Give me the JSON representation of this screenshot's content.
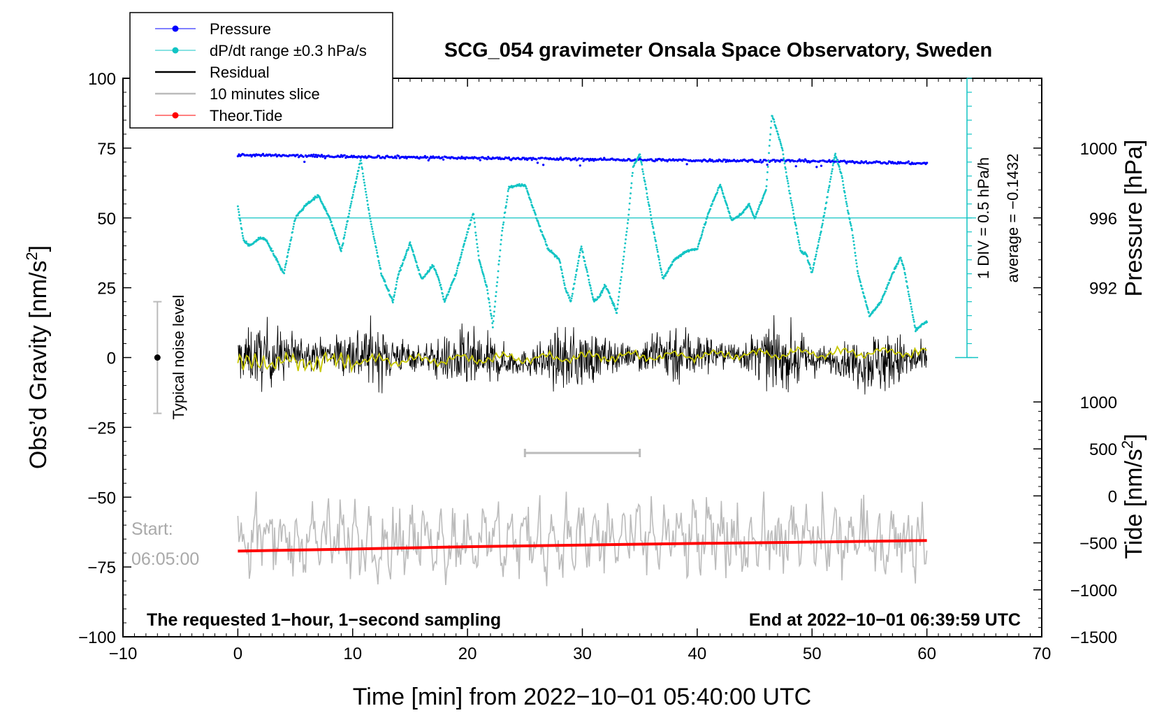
{
  "chart_data": {
    "type": "line",
    "title": "SCG_054 gravimeter Onsala Space Observatory, Sweden",
    "xlabel": "Time [min] from 2022−10−01 05:40:00 UTC",
    "ylabel_left": "Obs’d Gravity [nm/s²]",
    "ylabel_left_main": "Obs’d Gravity [nm/s",
    "ylabel_left_sup": "2",
    "ylabel_left_end": "]",
    "ylabel_pressure": "Pressure [hPa]",
    "ylabel_tide": "Tide [nm/s²]",
    "ylabel_tide_main": "Tide [nm/s",
    "ylabel_tide_sup": "2",
    "ylabel_tide_end": "]",
    "xlim": [
      -10,
      70
    ],
    "ylim": [
      -100,
      100
    ],
    "x_ticks": [
      -10,
      0,
      10,
      20,
      30,
      40,
      50,
      60,
      70
    ],
    "x_tick_labels": [
      "−10",
      "0",
      "10",
      "20",
      "30",
      "40",
      "50",
      "60",
      "70"
    ],
    "y_ticks": [
      100,
      75,
      50,
      25,
      0,
      -25,
      -50,
      -75,
      -100
    ],
    "y_tick_labels": [
      "100",
      "75",
      "50",
      "25",
      "0",
      "−25",
      "−50",
      "−75",
      "−100"
    ],
    "pressure_axis": {
      "ticks": [
        1000,
        996,
        992
      ],
      "tick_labels": [
        "1000",
        "996",
        "992"
      ],
      "gravity_equivalent": [
        75,
        50,
        25
      ]
    },
    "tide_axis": {
      "range": [
        -1500,
        1000
      ],
      "ticks": [
        1000,
        500,
        0,
        -500,
        -1000,
        -1500
      ],
      "tick_labels": [
        "1000",
        "500",
        "0",
        "−500",
        "−1000",
        "−1500"
      ]
    },
    "legend": {
      "position": "top-left",
      "entries": [
        {
          "label": "Pressure",
          "color": "#0000ff",
          "style": "line-dot"
        },
        {
          "label": "dP/dt range ±0.3 hPa/s",
          "color": "#11c4c4",
          "style": "line-dot"
        },
        {
          "label": "Residual",
          "color": "#000000",
          "style": "line"
        },
        {
          "label": "10 minutes slice",
          "color": "#bbbbbb",
          "style": "line"
        },
        {
          "label": "Theor.Tide",
          "color": "#ff0000",
          "style": "line-dot"
        }
      ]
    },
    "series": [
      {
        "name": "Pressure",
        "color": "#0000ff",
        "x": [
          0,
          10,
          20,
          30,
          40,
          50,
          60
        ],
        "values": [
          72.5,
          72.0,
          71.5,
          71.0,
          70.6,
          70.4,
          69.5
        ]
      },
      {
        "name": "dP/dt range",
        "color": "#11c4c4",
        "x": [
          0,
          0.5,
          1,
          2,
          2.5,
          3,
          4,
          5,
          6,
          7,
          8,
          9,
          10,
          10.7,
          11.5,
          12.5,
          13.5,
          14,
          15,
          16,
          17,
          17.5,
          18,
          19,
          20,
          20.5,
          21,
          21.7,
          22.2,
          23,
          23.6,
          25,
          26,
          27,
          28,
          28.5,
          29,
          29.9,
          31,
          31.5,
          32,
          33,
          34,
          34.4,
          35,
          36,
          37,
          38,
          39,
          40,
          41,
          42,
          43,
          44,
          44.5,
          45,
          46,
          46.5,
          47.4,
          48,
          49,
          49.5,
          50,
          51,
          52,
          52.6,
          53,
          53.5,
          54,
          55,
          56,
          57,
          57.7,
          58,
          59,
          60
        ],
        "values": [
          54,
          42,
          40,
          43,
          42,
          38,
          30,
          50,
          55,
          58,
          50,
          38,
          58,
          71,
          50,
          30,
          20,
          30,
          41,
          28,
          33,
          28,
          20,
          30,
          45,
          52,
          35,
          25,
          11,
          45,
          61,
          62,
          50,
          39,
          35,
          25,
          20,
          40,
          20,
          22,
          26,
          16,
          50,
          68,
          73,
          50,
          28,
          35,
          38,
          39,
          52,
          62,
          49,
          52,
          55,
          50,
          60,
          87,
          75,
          60,
          38,
          37,
          30,
          50,
          73,
          65,
          55,
          45,
          30,
          15,
          20,
          30,
          36,
          32,
          10,
          13
        ]
      },
      {
        "name": "Residual",
        "color": "#000000",
        "x": [
          0,
          60
        ],
        "envelope": [
          -20,
          20
        ]
      },
      {
        "name": "10 minutes slice",
        "color": "#bbbbbb",
        "x": [
          0,
          60
        ],
        "envelope": [
          -82,
          -48
        ]
      },
      {
        "name": "Theor.Tide",
        "color": "#ff0000",
        "x": [
          0,
          10,
          20,
          30,
          40,
          50,
          60
        ],
        "values": [
          -588,
          -566,
          -541,
          -523,
          -506,
          -492,
          -475
        ]
      }
    ],
    "annotations": {
      "noise_level_label": "Typical noise level",
      "noise_range": [
        -20,
        20
      ],
      "div_label": "1 DIV = 0.5 hPa/h",
      "average_label": "average = −0.1432",
      "slice_range": [
        25,
        35
      ],
      "start_label": "Start:",
      "start_time": "06:05:00",
      "bottom_left_note": "The requested 1−hour, 1−second sampling",
      "bottom_right_note": "End at 2022−10−01 06:39:59 UTC"
    }
  }
}
